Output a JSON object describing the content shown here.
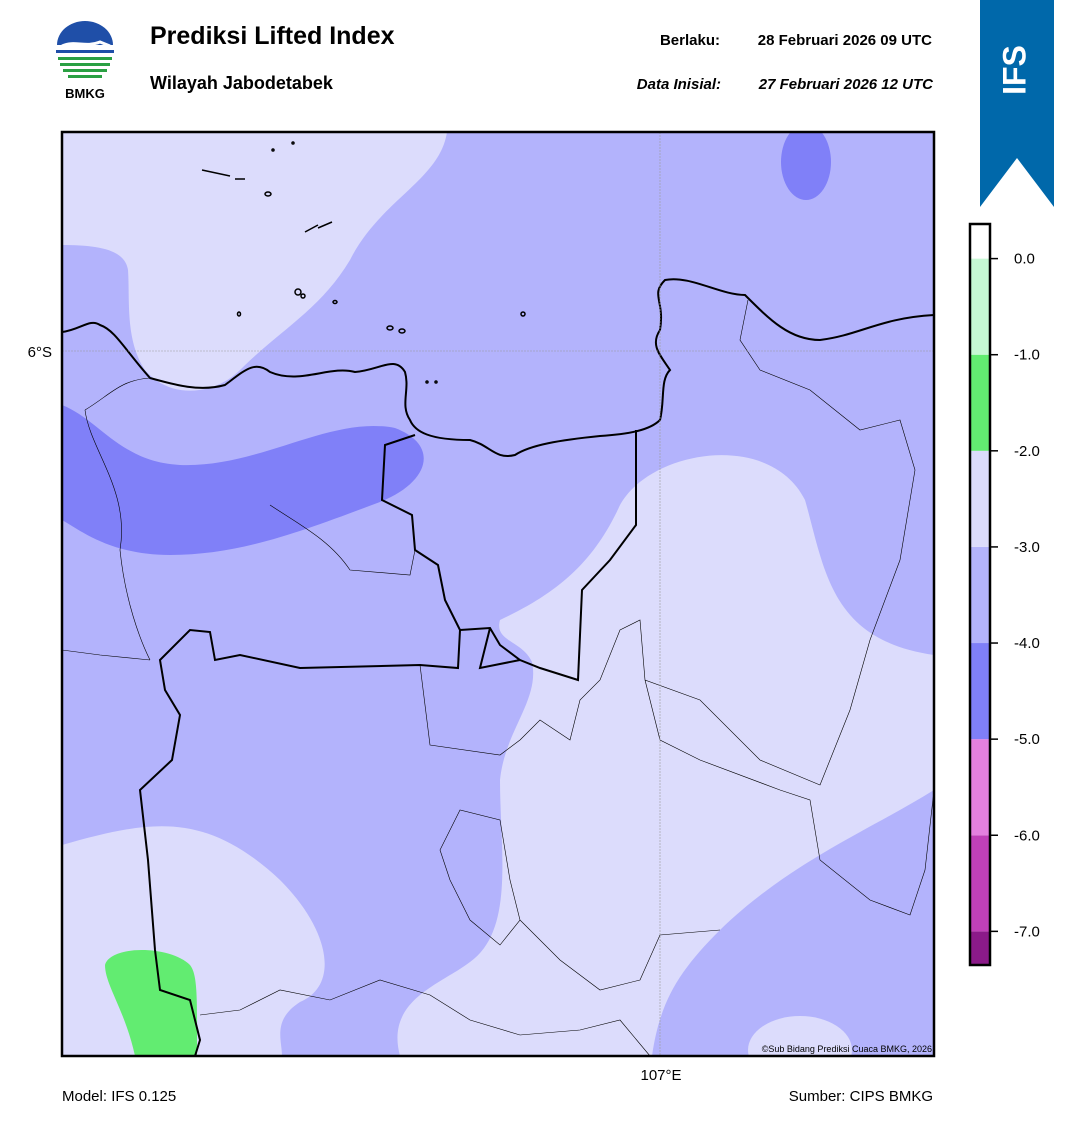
{
  "header": {
    "logo_text": "BMKG",
    "title": "Prediksi Lifted Index",
    "subtitle": "Wilayah Jabodetabek",
    "valid_label": "Berlaku:",
    "valid_value": "28 Februari 2026 09 UTC",
    "init_label": "Data Inisial:",
    "init_value": "27 Februari 2026 12 UTC",
    "badge": "IFS"
  },
  "map": {
    "lat_label": "6°S",
    "lon_label": "107°E",
    "credit": "©Sub Bidang Prediksi Cuaca BMKG, 2026"
  },
  "colorbar": {
    "lim": [
      -7.35,
      0.36
    ],
    "levels": [
      -7.35,
      -7,
      -6,
      -5,
      -4,
      -3,
      -2,
      -1,
      0,
      0.36
    ],
    "colors": [
      "#8b1a89",
      "#c040b8",
      "#e480df",
      "#7f7ff8",
      "#b3b3fc",
      "#dcdcfc",
      "#62ec71",
      "#c6f8d4",
      "#ffffff"
    ],
    "ticks": [
      {
        "value": 0,
        "label": "0.0"
      },
      {
        "value": -1,
        "label": "-1.0"
      },
      {
        "value": -2,
        "label": "-2.0"
      },
      {
        "value": -3,
        "label": "-3.0"
      },
      {
        "value": -4,
        "label": "-4.0"
      },
      {
        "value": -5,
        "label": "-5.0"
      },
      {
        "value": -6,
        "label": "-6.0"
      },
      {
        "value": -7,
        "label": "-7.0"
      }
    ]
  },
  "footer": {
    "model": "Model: IFS 0.125",
    "source": "Sumber: CIPS BMKG"
  }
}
